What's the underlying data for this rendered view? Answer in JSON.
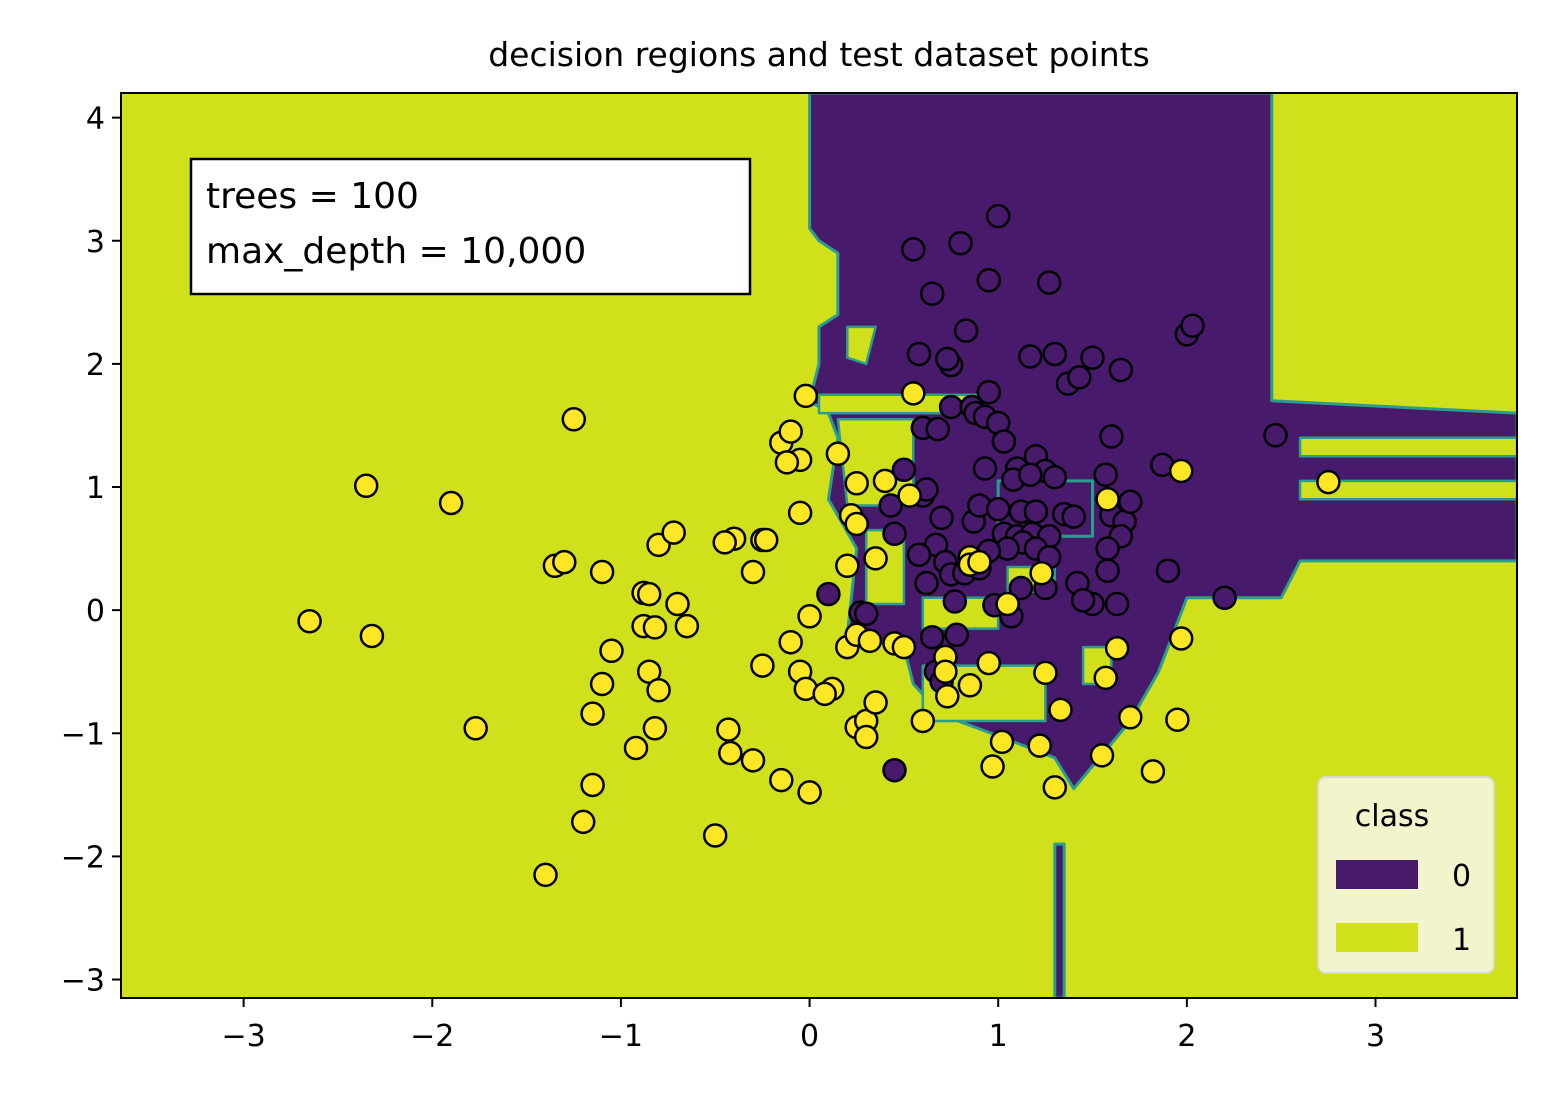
{
  "colors": {
    "class0": "#481a6c",
    "class1": "#d0e11c",
    "boundary": "#2a9d8e",
    "edge": "#000000",
    "legend_bg": "#f4f7d5",
    "test_point_class1": "#fde725"
  },
  "chart_data": {
    "type": "scatter",
    "title": "decision regions and test dataset points",
    "xlabel": "",
    "ylabel": "",
    "xlim": [
      -3.65,
      3.75
    ],
    "ylim": [
      -3.15,
      4.2
    ],
    "xticks": [
      -3,
      -2,
      -1,
      0,
      1,
      2,
      3
    ],
    "yticks": [
      -3,
      -2,
      -1,
      0,
      1,
      2,
      3,
      4
    ],
    "xtick_labels": [
      "−3",
      "−2",
      "−1",
      "0",
      "1",
      "2",
      "3"
    ],
    "ytick_labels": [
      "−3",
      "−2",
      "−1",
      "0",
      "1",
      "2",
      "3",
      "4"
    ],
    "grid": false,
    "annotation": {
      "line1": "trees = 100",
      "line2": "max_depth = 10,000"
    },
    "legend": {
      "title": "class",
      "position": "lower right",
      "entries": [
        {
          "label": "0",
          "color": "#481a6c"
        },
        {
          "label": "1",
          "color": "#d0e11c"
        }
      ]
    },
    "decision_regions": {
      "background_class": 1,
      "class0_regions": [
        [
          [
            0.0,
            4.2
          ],
          [
            2.45,
            4.2
          ],
          [
            2.45,
            1.7
          ],
          [
            3.75,
            1.6
          ],
          [
            3.75,
            0.4
          ],
          [
            2.6,
            0.4
          ],
          [
            2.5,
            0.1
          ],
          [
            2.0,
            0.1
          ],
          [
            1.85,
            -0.5
          ],
          [
            1.7,
            -0.9
          ],
          [
            1.4,
            -1.45
          ],
          [
            1.3,
            -1.2
          ],
          [
            1.05,
            -1.05
          ],
          [
            0.7,
            -0.85
          ],
          [
            0.55,
            -0.6
          ],
          [
            0.5,
            -0.3
          ],
          [
            0.2,
            -0.2
          ],
          [
            0.25,
            0.5
          ],
          [
            0.1,
            0.9
          ],
          [
            0.15,
            1.4
          ],
          [
            0.1,
            1.6
          ],
          [
            0.0,
            1.7
          ],
          [
            0.05,
            2.0
          ],
          [
            0.05,
            2.3
          ],
          [
            0.15,
            2.4
          ],
          [
            0.15,
            2.9
          ],
          [
            0.05,
            3.0
          ],
          [
            0.0,
            3.1
          ]
        ],
        [
          [
            1.3,
            -1.9
          ],
          [
            1.35,
            -1.9
          ],
          [
            1.35,
            -3.15
          ],
          [
            1.3,
            -3.15
          ]
        ],
        [
          [
            1.0,
            1.05
          ],
          [
            1.5,
            1.05
          ],
          [
            1.5,
            0.6
          ],
          [
            1.0,
            0.6
          ]
        ]
      ],
      "class1_holes": [
        [
          [
            0.05,
            1.75
          ],
          [
            0.9,
            1.75
          ],
          [
            0.9,
            1.6
          ],
          [
            0.05,
            1.6
          ]
        ],
        [
          [
            0.15,
            1.55
          ],
          [
            0.55,
            1.55
          ],
          [
            0.55,
            0.85
          ],
          [
            0.2,
            0.85
          ]
        ],
        [
          [
            0.3,
            0.65
          ],
          [
            0.5,
            0.65
          ],
          [
            0.5,
            0.05
          ],
          [
            0.3,
            0.05
          ]
        ],
        [
          [
            0.2,
            2.3
          ],
          [
            0.35,
            2.3
          ],
          [
            0.3,
            2.0
          ],
          [
            0.2,
            2.05
          ]
        ],
        [
          [
            2.6,
            1.4
          ],
          [
            3.75,
            1.4
          ],
          [
            3.75,
            1.25
          ],
          [
            2.6,
            1.25
          ]
        ],
        [
          [
            2.6,
            1.05
          ],
          [
            3.75,
            1.05
          ],
          [
            3.75,
            0.9
          ],
          [
            2.6,
            0.9
          ]
        ],
        [
          [
            0.6,
            -0.45
          ],
          [
            1.25,
            -0.45
          ],
          [
            1.25,
            -0.9
          ],
          [
            0.6,
            -0.9
          ]
        ],
        [
          [
            0.6,
            0.1
          ],
          [
            1.0,
            0.1
          ],
          [
            1.0,
            -0.15
          ],
          [
            0.6,
            -0.15
          ]
        ],
        [
          [
            1.05,
            0.35
          ],
          [
            1.3,
            0.35
          ],
          [
            1.3,
            0.15
          ],
          [
            1.05,
            0.15
          ]
        ],
        [
          [
            1.45,
            -0.3
          ],
          [
            1.6,
            -0.3
          ],
          [
            1.6,
            -0.6
          ],
          [
            1.45,
            -0.6
          ]
        ]
      ]
    },
    "series": [
      {
        "name": "0",
        "points": [
          [
            0.55,
            2.93
          ],
          [
            1.0,
            3.2
          ],
          [
            0.8,
            2.98
          ],
          [
            0.65,
            2.57
          ],
          [
            1.27,
            2.66
          ],
          [
            0.95,
            2.68
          ],
          [
            0.58,
            2.08
          ],
          [
            0.75,
            1.99
          ],
          [
            0.83,
            2.27
          ],
          [
            2.0,
            2.24
          ],
          [
            2.03,
            2.31
          ],
          [
            1.17,
            2.06
          ],
          [
            1.3,
            2.08
          ],
          [
            1.5,
            2.05
          ],
          [
            1.65,
            1.95
          ],
          [
            1.37,
            1.84
          ],
          [
            1.43,
            1.89
          ],
          [
            0.73,
            2.04
          ],
          [
            0.95,
            1.77
          ],
          [
            0.75,
            1.65
          ],
          [
            0.86,
            1.65
          ],
          [
            0.88,
            1.6
          ],
          [
            0.93,
            1.57
          ],
          [
            1.0,
            1.52
          ],
          [
            0.6,
            1.48
          ],
          [
            0.68,
            1.47
          ],
          [
            1.03,
            1.37
          ],
          [
            1.6,
            1.41
          ],
          [
            2.47,
            1.42
          ],
          [
            0.5,
            1.14
          ],
          [
            0.93,
            1.15
          ],
          [
            1.1,
            1.15
          ],
          [
            1.2,
            1.25
          ],
          [
            1.25,
            1.13
          ],
          [
            1.08,
            1.06
          ],
          [
            1.17,
            1.1
          ],
          [
            1.3,
            1.08
          ],
          [
            1.57,
            1.1
          ],
          [
            1.87,
            1.18
          ],
          [
            0.6,
            0.93
          ],
          [
            0.43,
            0.85
          ],
          [
            0.45,
            0.62
          ],
          [
            0.62,
            0.98
          ],
          [
            0.7,
            0.75
          ],
          [
            0.87,
            0.72
          ],
          [
            0.9,
            0.85
          ],
          [
            1.0,
            0.82
          ],
          [
            1.12,
            0.8
          ],
          [
            1.2,
            0.8
          ],
          [
            1.35,
            0.78
          ],
          [
            1.4,
            0.76
          ],
          [
            1.6,
            0.77
          ],
          [
            1.67,
            0.72
          ],
          [
            1.65,
            0.6
          ],
          [
            1.7,
            0.88
          ],
          [
            1.03,
            0.62
          ],
          [
            1.1,
            0.6
          ],
          [
            1.18,
            0.62
          ],
          [
            1.27,
            0.6
          ],
          [
            1.13,
            0.55
          ],
          [
            1.2,
            0.5
          ],
          [
            1.05,
            0.5
          ],
          [
            0.95,
            0.48
          ],
          [
            0.67,
            0.53
          ],
          [
            0.58,
            0.45
          ],
          [
            0.72,
            0.39
          ],
          [
            0.62,
            0.22
          ],
          [
            0.75,
            0.29
          ],
          [
            0.77,
            0.07
          ],
          [
            0.82,
            0.3
          ],
          [
            0.9,
            0.34
          ],
          [
            1.27,
            0.43
          ],
          [
            1.58,
            0.5
          ],
          [
            1.58,
            0.32
          ],
          [
            1.9,
            0.32
          ],
          [
            1.42,
            0.22
          ],
          [
            1.5,
            0.05
          ],
          [
            1.12,
            0.18
          ],
          [
            1.25,
            0.18
          ],
          [
            1.45,
            0.08
          ],
          [
            0.98,
            0.04
          ],
          [
            1.07,
            -0.05
          ],
          [
            1.63,
            0.05
          ],
          [
            0.27,
            -0.02
          ],
          [
            0.3,
            -0.03
          ],
          [
            0.1,
            0.13
          ],
          [
            0.65,
            -0.22
          ],
          [
            0.78,
            -0.2
          ],
          [
            0.67,
            -0.5
          ],
          [
            0.7,
            -0.58
          ],
          [
            0.45,
            -1.3
          ],
          [
            2.2,
            0.1
          ]
        ]
      },
      {
        "name": "1",
        "points": [
          [
            -2.35,
            1.01
          ],
          [
            -1.9,
            0.87
          ],
          [
            -1.25,
            1.55
          ],
          [
            -2.65,
            -0.09
          ],
          [
            -2.32,
            -0.21
          ],
          [
            -1.35,
            0.36
          ],
          [
            -1.3,
            0.39
          ],
          [
            -1.1,
            0.31
          ],
          [
            -0.88,
            0.14
          ],
          [
            -0.8,
            0.53
          ],
          [
            -0.72,
            0.63
          ],
          [
            -0.85,
            0.13
          ],
          [
            -0.88,
            -0.13
          ],
          [
            -0.82,
            -0.14
          ],
          [
            -0.7,
            0.05
          ],
          [
            -0.65,
            -0.13
          ],
          [
            -1.05,
            -0.33
          ],
          [
            -1.1,
            -0.6
          ],
          [
            -0.85,
            -0.5
          ],
          [
            -0.8,
            -0.65
          ],
          [
            -1.15,
            -0.84
          ],
          [
            -1.77,
            -0.96
          ],
          [
            -0.82,
            -0.96
          ],
          [
            -0.92,
            -1.12
          ],
          [
            -0.43,
            -0.97
          ],
          [
            -0.42,
            -1.16
          ],
          [
            -0.3,
            -1.22
          ],
          [
            -1.15,
            -1.42
          ],
          [
            -1.2,
            -1.72
          ],
          [
            -1.4,
            -2.15
          ],
          [
            -0.5,
            -1.83
          ],
          [
            -0.15,
            -1.38
          ],
          [
            0.0,
            -1.48
          ],
          [
            -0.4,
            0.58
          ],
          [
            -0.45,
            0.55
          ],
          [
            -0.25,
            0.57
          ],
          [
            -0.23,
            0.57
          ],
          [
            -0.3,
            0.31
          ],
          [
            -0.05,
            0.79
          ],
          [
            -0.05,
            1.22
          ],
          [
            -0.15,
            1.36
          ],
          [
            -0.12,
            1.2
          ],
          [
            -0.1,
            1.45
          ],
          [
            -0.02,
            1.74
          ],
          [
            0.15,
            1.27
          ],
          [
            0.22,
            0.77
          ],
          [
            0.25,
            0.7
          ],
          [
            0.25,
            1.03
          ],
          [
            0.35,
            0.42
          ],
          [
            0.4,
            1.05
          ],
          [
            0.2,
            0.36
          ],
          [
            0.0,
            -0.05
          ],
          [
            -0.1,
            -0.26
          ],
          [
            -0.05,
            -0.5
          ],
          [
            -0.02,
            -0.64
          ],
          [
            -0.25,
            -0.45
          ],
          [
            0.12,
            -0.64
          ],
          [
            0.08,
            -0.68
          ],
          [
            0.2,
            -0.3
          ],
          [
            0.25,
            -0.2
          ],
          [
            0.32,
            -0.25
          ],
          [
            0.45,
            -0.27
          ],
          [
            0.5,
            -0.3
          ],
          [
            0.25,
            -0.95
          ],
          [
            0.3,
            -0.9
          ],
          [
            0.3,
            -1.03
          ],
          [
            0.35,
            -0.75
          ],
          [
            0.6,
            -0.9
          ],
          [
            0.72,
            -0.38
          ],
          [
            0.72,
            -0.5
          ],
          [
            0.73,
            -0.7
          ],
          [
            0.85,
            -0.61
          ],
          [
            0.95,
            -0.43
          ],
          [
            0.97,
            -1.27
          ],
          [
            1.02,
            -1.07
          ],
          [
            1.22,
            -1.1
          ],
          [
            1.25,
            -0.51
          ],
          [
            1.3,
            -1.44
          ],
          [
            1.33,
            -0.81
          ],
          [
            1.55,
            -1.18
          ],
          [
            1.57,
            -0.55
          ],
          [
            1.63,
            -0.31
          ],
          [
            1.7,
            -0.87
          ],
          [
            1.82,
            -1.31
          ],
          [
            1.95,
            -0.89
          ],
          [
            1.97,
            -0.23
          ],
          [
            1.97,
            1.13
          ],
          [
            1.58,
            0.9
          ],
          [
            2.75,
            1.04
          ],
          [
            0.55,
            1.76
          ],
          [
            0.53,
            0.93
          ],
          [
            0.85,
            0.43
          ],
          [
            0.85,
            0.37
          ],
          [
            0.9,
            0.39
          ],
          [
            1.05,
            0.05
          ],
          [
            1.23,
            0.3
          ]
        ]
      }
    ]
  }
}
